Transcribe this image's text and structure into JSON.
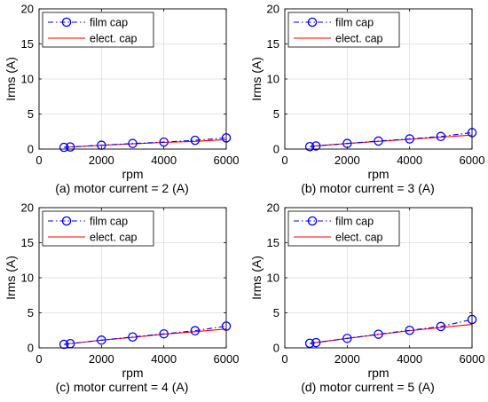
{
  "chart_data": [
    {
      "type": "line",
      "caption": "(a) motor current = 2 (A)",
      "xlabel": "rpm",
      "ylabel": "Irms (A)",
      "xlim": [
        0,
        6000
      ],
      "ylim": [
        0,
        20
      ],
      "xticks": [
        0,
        2000,
        4000,
        6000
      ],
      "yticks": [
        0,
        5,
        10,
        15,
        20
      ],
      "grid": true,
      "legend_position": "top-left",
      "series": [
        {
          "name": "film cap",
          "style": "dash-dot with circle markers",
          "color": "#0000ff",
          "x": [
            800,
            1000,
            2000,
            3000,
            4000,
            5000,
            6000
          ],
          "y": [
            0.25,
            0.3,
            0.55,
            0.8,
            1.0,
            1.25,
            1.6
          ]
        },
        {
          "name": "elect. cap",
          "style": "solid",
          "color": "#ff0000",
          "x": [
            800,
            1000,
            2000,
            3000,
            4000,
            5000,
            6000
          ],
          "y": [
            0.25,
            0.3,
            0.55,
            0.75,
            0.95,
            1.1,
            1.35
          ]
        }
      ]
    },
    {
      "type": "line",
      "caption": "(b) motor current = 3 (A)",
      "xlabel": "rpm",
      "ylabel": "Irms (A)",
      "xlim": [
        0,
        6000
      ],
      "ylim": [
        0,
        20
      ],
      "xticks": [
        0,
        2000,
        4000,
        6000
      ],
      "yticks": [
        0,
        5,
        10,
        15,
        20
      ],
      "grid": true,
      "legend_position": "top-left",
      "series": [
        {
          "name": "film cap",
          "style": "dash-dot with circle markers",
          "color": "#0000ff",
          "x": [
            800,
            1000,
            2000,
            3000,
            4000,
            5000,
            6000
          ],
          "y": [
            0.35,
            0.45,
            0.8,
            1.15,
            1.45,
            1.8,
            2.35
          ]
        },
        {
          "name": "elect. cap",
          "style": "solid",
          "color": "#ff0000",
          "x": [
            800,
            1000,
            2000,
            3000,
            4000,
            5000,
            6000
          ],
          "y": [
            0.35,
            0.45,
            0.8,
            1.1,
            1.4,
            1.7,
            2.0
          ]
        }
      ]
    },
    {
      "type": "line",
      "caption": "(c) motor current = 4 (A)",
      "xlabel": "rpm",
      "ylabel": "Irms (A)",
      "xlim": [
        0,
        6000
      ],
      "ylim": [
        0,
        20
      ],
      "xticks": [
        0,
        2000,
        4000,
        6000
      ],
      "yticks": [
        0,
        5,
        10,
        15,
        20
      ],
      "grid": true,
      "legend_position": "top-left",
      "series": [
        {
          "name": "film cap",
          "style": "dash-dot with circle markers",
          "color": "#0000ff",
          "x": [
            800,
            1000,
            2000,
            3000,
            4000,
            5000,
            6000
          ],
          "y": [
            0.5,
            0.6,
            1.1,
            1.55,
            2.0,
            2.45,
            3.1
          ]
        },
        {
          "name": "elect. cap",
          "style": "solid",
          "color": "#ff0000",
          "x": [
            800,
            1000,
            2000,
            3000,
            4000,
            5000,
            6000
          ],
          "y": [
            0.5,
            0.6,
            1.1,
            1.5,
            1.95,
            2.3,
            2.7
          ]
        }
      ]
    },
    {
      "type": "line",
      "caption": "(d) motor current = 5 (A)",
      "xlabel": "rpm",
      "ylabel": "Irms (A)",
      "xlim": [
        0,
        6000
      ],
      "ylim": [
        0,
        20
      ],
      "xticks": [
        0,
        2000,
        4000,
        6000
      ],
      "yticks": [
        0,
        5,
        10,
        15,
        20
      ],
      "grid": true,
      "legend_position": "top-left",
      "series": [
        {
          "name": "film cap",
          "style": "dash-dot with circle markers",
          "color": "#0000ff",
          "x": [
            800,
            1000,
            2000,
            3000,
            4000,
            5000,
            6000
          ],
          "y": [
            0.65,
            0.75,
            1.35,
            1.95,
            2.5,
            3.05,
            4.05
          ]
        },
        {
          "name": "elect. cap",
          "style": "solid",
          "color": "#ff0000",
          "x": [
            800,
            1000,
            2000,
            3000,
            4000,
            5000,
            6000
          ],
          "y": [
            0.6,
            0.75,
            1.35,
            1.9,
            2.45,
            2.9,
            3.35
          ]
        }
      ]
    }
  ]
}
